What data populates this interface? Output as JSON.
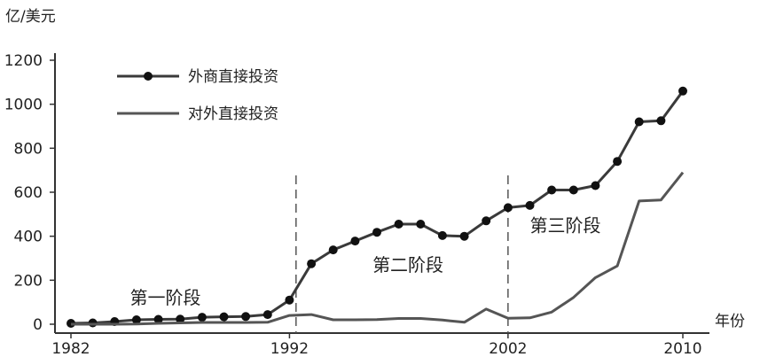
{
  "chart_data": {
    "type": "line",
    "y_unit_label": "亿/美元",
    "x_unit_label": "年份",
    "ylim": [
      0,
      1200
    ],
    "xlim": [
      1982,
      2010
    ],
    "yticks": [
      0,
      200,
      400,
      600,
      800,
      1000,
      1200
    ],
    "xticks": [
      1982,
      1992,
      2002,
      2010
    ],
    "xtick_labels": [
      "1982",
      "1992",
      "2002",
      "2010"
    ],
    "ytick_labels": [
      "0",
      "200",
      "400",
      "600",
      "800",
      "1000",
      "1200"
    ],
    "legend_position": "top-left",
    "series": [
      {
        "name": "外商直接投资",
        "style": "line-with-dots",
        "color": "#3a3a3a",
        "x": [
          1982,
          1983,
          1984,
          1985,
          1986,
          1987,
          1988,
          1989,
          1990,
          1991,
          1992,
          1993,
          1994,
          1995,
          1996,
          1997,
          1998,
          1999,
          2000,
          2001,
          2002,
          2003,
          2004,
          2005,
          2006,
          2007,
          2008,
          2009,
          2010
        ],
        "values": [
          4,
          6,
          12,
          20,
          22,
          23,
          32,
          34,
          35,
          44,
          110,
          275,
          338,
          378,
          418,
          455,
          455,
          403,
          400,
          470,
          530,
          540,
          610,
          610,
          630,
          740,
          920,
          925,
          1060
        ]
      },
      {
        "name": "对外直接投资",
        "style": "line",
        "color": "#555555",
        "x": [
          1982,
          1983,
          1984,
          1985,
          1986,
          1987,
          1988,
          1989,
          1990,
          1991,
          1992,
          1993,
          1994,
          1995,
          1996,
          1997,
          1998,
          1999,
          2000,
          2001,
          2002,
          2003,
          2004,
          2005,
          2006,
          2007,
          2008,
          2009,
          2010
        ],
        "values": [
          0,
          0,
          0,
          1,
          4,
          6,
          8,
          8,
          8,
          9,
          40,
          44,
          20,
          20,
          21,
          26,
          26,
          19,
          9,
          69,
          27,
          29,
          55,
          122,
          212,
          265,
          560,
          565,
          690
        ]
      }
    ],
    "annotations": [
      {
        "text": "第一阶段",
        "x": 1984.7,
        "y": 120
      },
      {
        "text": "第二阶段",
        "x": 1995.8,
        "y": 270
      },
      {
        "text": "第三阶段",
        "x": 2003.0,
        "y": 450
      }
    ],
    "dividers": [
      1992.3,
      2002.0
    ]
  }
}
